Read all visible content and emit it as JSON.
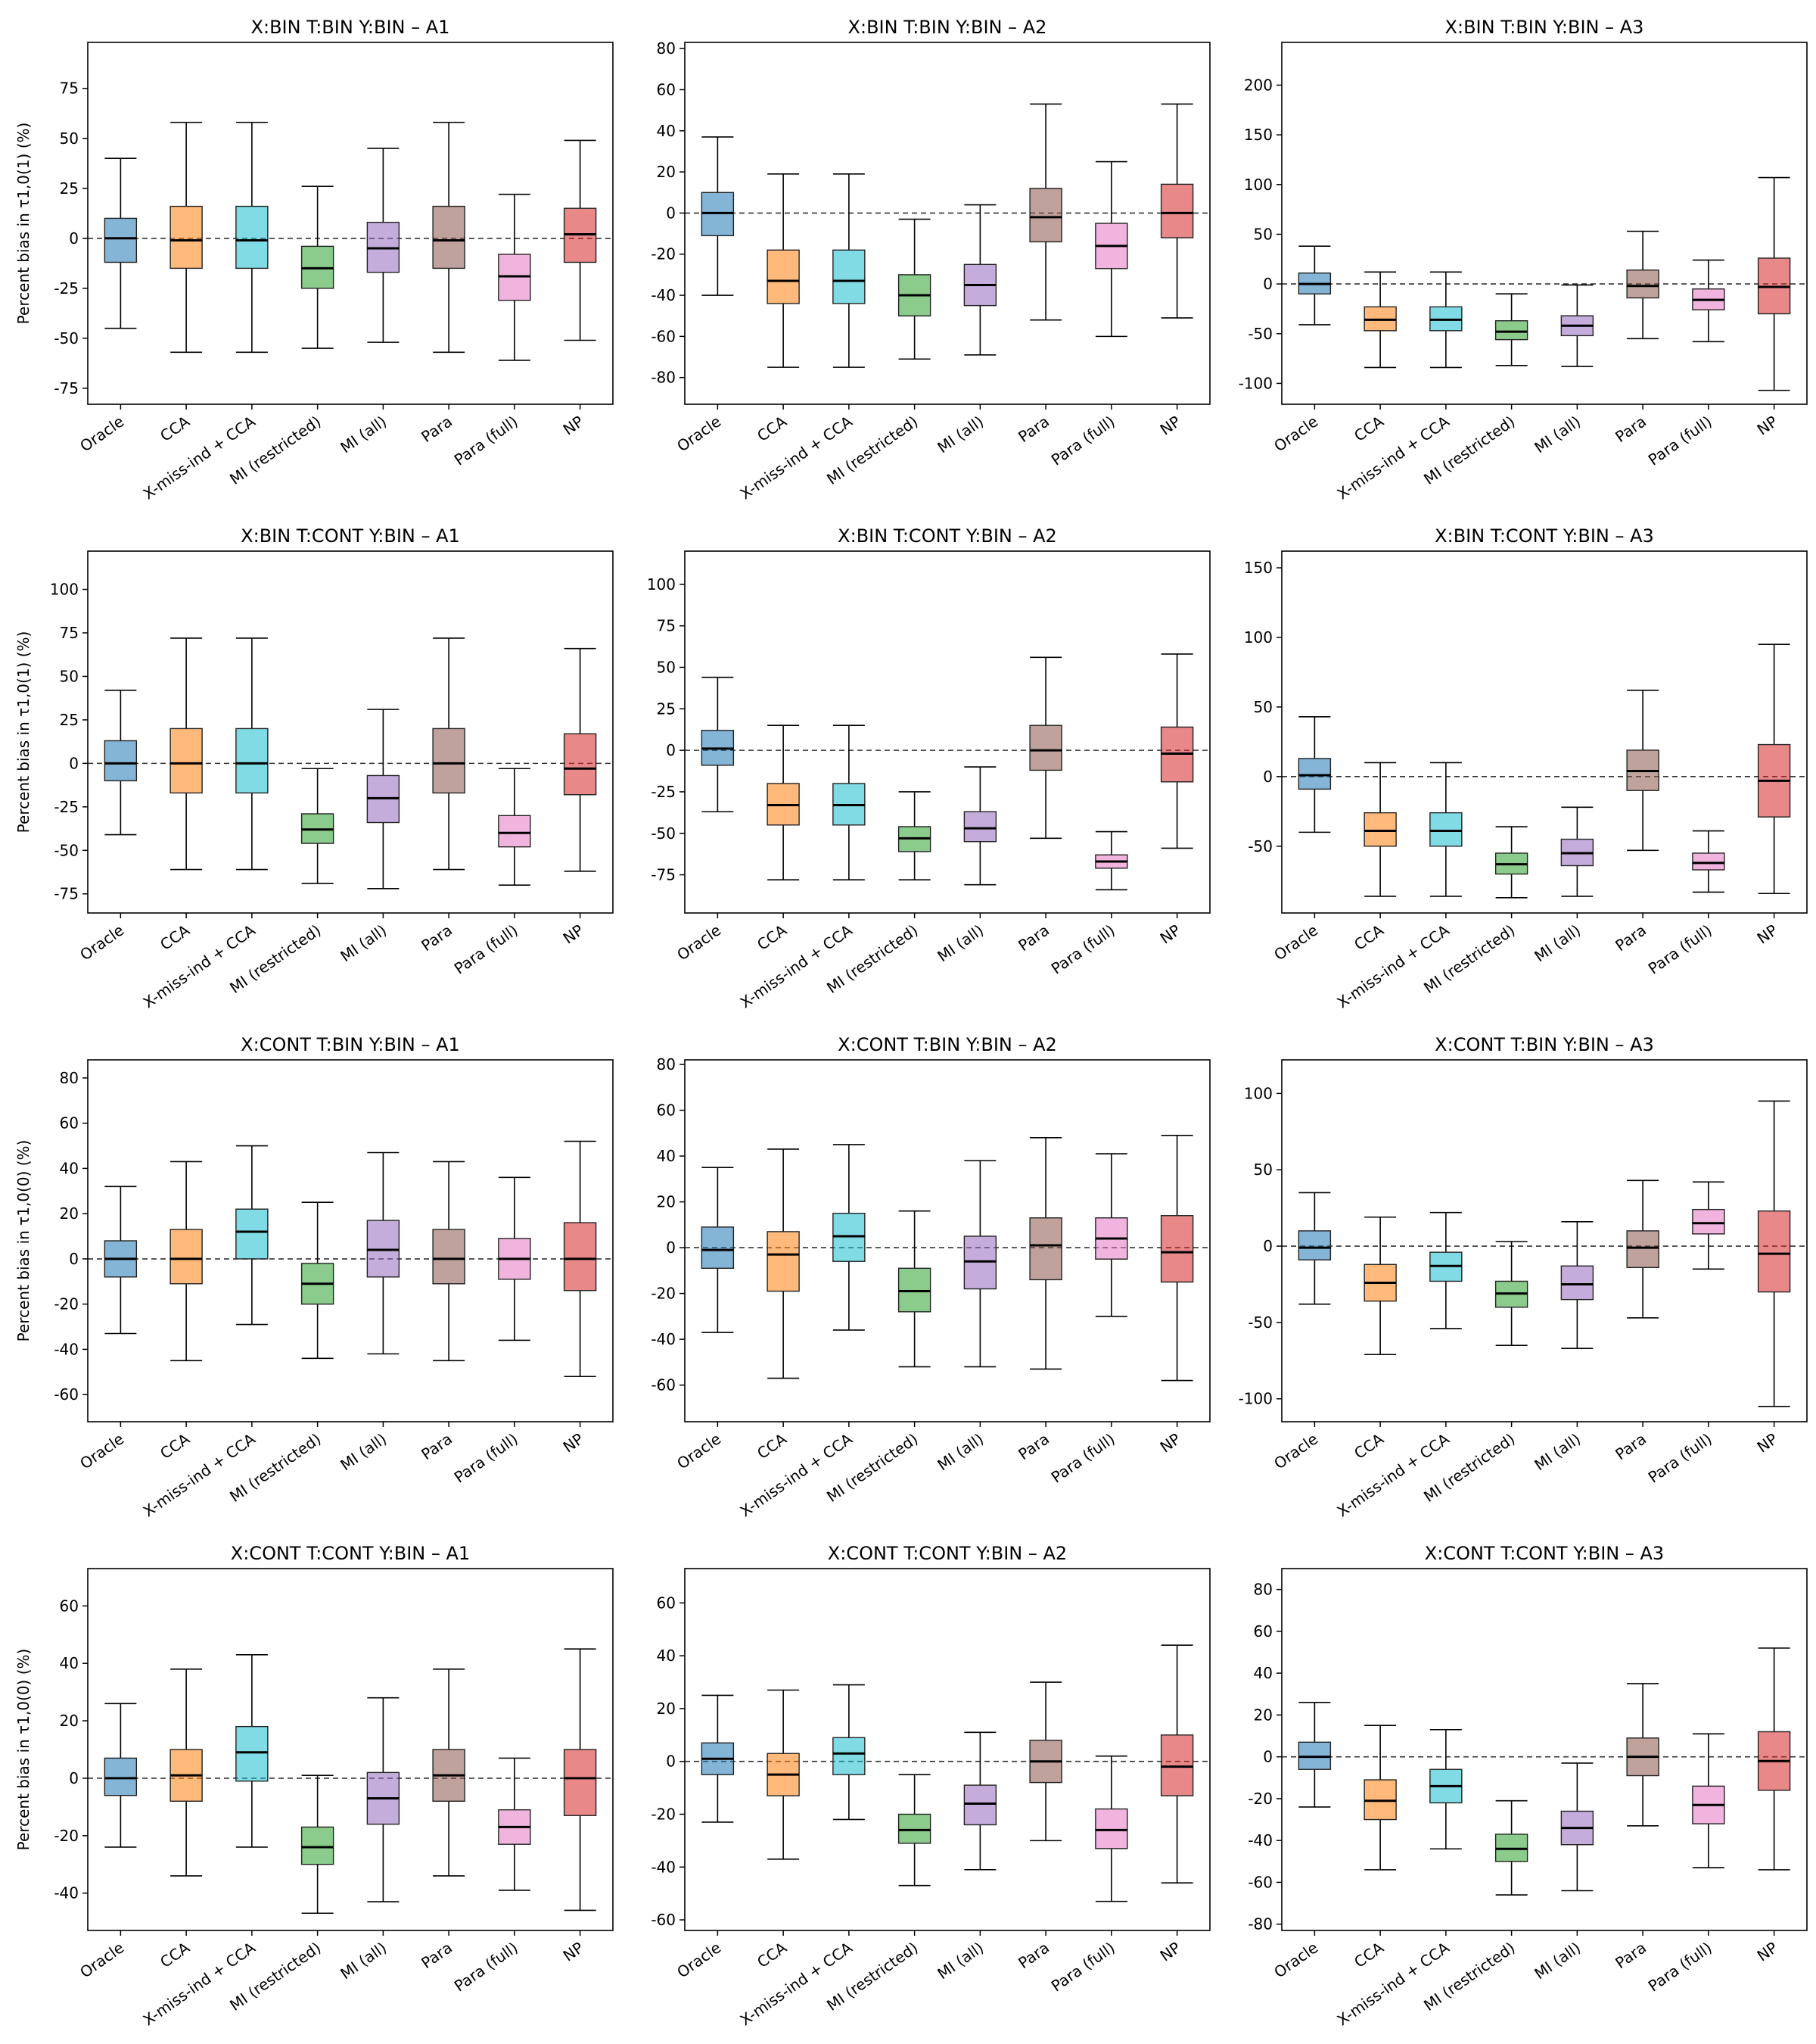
{
  "colors": [
    "#1f77b4",
    "#ff7f0e",
    "#17becf",
    "#2ca02c",
    "#9467bd",
    "#8c564b",
    "#e377c2",
    "#d62728"
  ],
  "chart_data": [
    {
      "type": "box",
      "title": "X:BIN T:BIN Y:BIN – A1",
      "ylabel": "Percent bias in τ1,0(1) (%)",
      "ylim": [
        -83,
        98
      ],
      "yticks": [
        "-75",
        "-50",
        "-25",
        "0",
        "25",
        "50",
        "75"
      ],
      "categories": [
        "Oracle",
        "CCA",
        "X-miss-ind + CCA",
        "MI (restricted)",
        "MI (all)",
        "Para",
        "Para (full)",
        "NP"
      ],
      "boxes": [
        {
          "min": -45,
          "q1": -12,
          "median": 0,
          "q3": 10,
          "max": 40
        },
        {
          "min": -57,
          "q1": -15,
          "median": -1,
          "q3": 16,
          "max": 58
        },
        {
          "min": -57,
          "q1": -15,
          "median": -1,
          "q3": 16,
          "max": 58
        },
        {
          "min": -55,
          "q1": -25,
          "median": -15,
          "q3": -4,
          "max": 26
        },
        {
          "min": -52,
          "q1": -17,
          "median": -5,
          "q3": 8,
          "max": 45
        },
        {
          "min": -57,
          "q1": -15,
          "median": -1,
          "q3": 16,
          "max": 58
        },
        {
          "min": -61,
          "q1": -31,
          "median": -19,
          "q3": -8,
          "max": 22
        },
        {
          "min": -51,
          "q1": -12,
          "median": 2,
          "q3": 15,
          "max": 49
        }
      ]
    },
    {
      "type": "box",
      "title": "X:BIN T:BIN Y:BIN – A2",
      "ylabel": "",
      "ylim": [
        -93,
        83
      ],
      "yticks": [
        "-80",
        "-60",
        "-40",
        "-20",
        "0",
        "20",
        "40",
        "60",
        "80"
      ],
      "categories": [
        "Oracle",
        "CCA",
        "X-miss-ind + CCA",
        "MI (restricted)",
        "MI (all)",
        "Para",
        "Para (full)",
        "NP"
      ],
      "boxes": [
        {
          "min": -40,
          "q1": -11,
          "median": 0,
          "q3": 10,
          "max": 37
        },
        {
          "min": -75,
          "q1": -44,
          "median": -33,
          "q3": -18,
          "max": 19
        },
        {
          "min": -75,
          "q1": -44,
          "median": -33,
          "q3": -18,
          "max": 19
        },
        {
          "min": -71,
          "q1": -50,
          "median": -40,
          "q3": -30,
          "max": -3
        },
        {
          "min": -69,
          "q1": -45,
          "median": -35,
          "q3": -25,
          "max": 4
        },
        {
          "min": -52,
          "q1": -14,
          "median": -2,
          "q3": 12,
          "max": 53
        },
        {
          "min": -60,
          "q1": -27,
          "median": -16,
          "q3": -5,
          "max": 25
        },
        {
          "min": -51,
          "q1": -12,
          "median": 0,
          "q3": 14,
          "max": 53
        }
      ]
    },
    {
      "type": "box",
      "title": "X:BIN T:BIN Y:BIN – A3",
      "ylabel": "",
      "ylim": [
        -121,
        243
      ],
      "yticks": [
        "-100",
        "-50",
        "0",
        "50",
        "100",
        "150",
        "200"
      ],
      "categories": [
        "Oracle",
        "CCA",
        "X-miss-ind + CCA",
        "MI (restricted)",
        "MI (all)",
        "Para",
        "Para (full)",
        "NP"
      ],
      "boxes": [
        {
          "min": -41,
          "q1": -10,
          "median": 0,
          "q3": 11,
          "max": 38
        },
        {
          "min": -84,
          "q1": -47,
          "median": -36,
          "q3": -23,
          "max": 12
        },
        {
          "min": -84,
          "q1": -47,
          "median": -36,
          "q3": -23,
          "max": 12
        },
        {
          "min": -82,
          "q1": -56,
          "median": -48,
          "q3": -37,
          "max": -10
        },
        {
          "min": -83,
          "q1": -52,
          "median": -42,
          "q3": -32,
          "max": -1
        },
        {
          "min": -55,
          "q1": -14,
          "median": -2,
          "q3": 14,
          "max": 53
        },
        {
          "min": -58,
          "q1": -26,
          "median": -16,
          "q3": -5,
          "max": 24
        },
        {
          "min": -107,
          "q1": -30,
          "median": -3,
          "q3": 26,
          "max": 107
        }
      ]
    },
    {
      "type": "box",
      "title": "X:BIN T:CONT Y:BIN – A1",
      "ylabel": "Percent bias in τ1,0(1) (%)",
      "ylim": [
        -86,
        122
      ],
      "yticks": [
        "-75",
        "-50",
        "-25",
        "0",
        "25",
        "50",
        "75",
        "100"
      ],
      "categories": [
        "Oracle",
        "CCA",
        "X-miss-ind + CCA",
        "MI (restricted)",
        "MI (all)",
        "Para",
        "Para (full)",
        "NP"
      ],
      "boxes": [
        {
          "min": -41,
          "q1": -10,
          "median": 0,
          "q3": 13,
          "max": 42
        },
        {
          "min": -61,
          "q1": -17,
          "median": 0,
          "q3": 20,
          "max": 72
        },
        {
          "min": -61,
          "q1": -17,
          "median": 0,
          "q3": 20,
          "max": 72
        },
        {
          "min": -69,
          "q1": -46,
          "median": -38,
          "q3": -29,
          "max": -3
        },
        {
          "min": -72,
          "q1": -34,
          "median": -20,
          "q3": -7,
          "max": 31
        },
        {
          "min": -61,
          "q1": -17,
          "median": 0,
          "q3": 20,
          "max": 72
        },
        {
          "min": -70,
          "q1": -48,
          "median": -40,
          "q3": -30,
          "max": -3
        },
        {
          "min": -62,
          "q1": -18,
          "median": -3,
          "q3": 17,
          "max": 66
        }
      ]
    },
    {
      "type": "box",
      "title": "X:BIN T:CONT Y:BIN – A2",
      "ylabel": "",
      "ylim": [
        -98,
        120
      ],
      "yticks": [
        "-75",
        "-50",
        "-25",
        "0",
        "25",
        "50",
        "75",
        "100"
      ],
      "categories": [
        "Oracle",
        "CCA",
        "X-miss-ind + CCA",
        "MI (restricted)",
        "MI (all)",
        "Para",
        "Para (full)",
        "NP"
      ],
      "boxes": [
        {
          "min": -37,
          "q1": -9,
          "median": 1,
          "q3": 12,
          "max": 44
        },
        {
          "min": -78,
          "q1": -45,
          "median": -33,
          "q3": -20,
          "max": 15
        },
        {
          "min": -78,
          "q1": -45,
          "median": -33,
          "q3": -20,
          "max": 15
        },
        {
          "min": -78,
          "q1": -61,
          "median": -53,
          "q3": -46,
          "max": -25
        },
        {
          "min": -81,
          "q1": -55,
          "median": -47,
          "q3": -37,
          "max": -10
        },
        {
          "min": -53,
          "q1": -12,
          "median": 0,
          "q3": 15,
          "max": 56
        },
        {
          "min": -84,
          "q1": -71,
          "median": -67,
          "q3": -63,
          "max": -49
        },
        {
          "min": -59,
          "q1": -19,
          "median": -2,
          "q3": 14,
          "max": 58
        }
      ]
    },
    {
      "type": "box",
      "title": "X:BIN T:CONT Y:BIN – A3",
      "ylabel": "",
      "ylim": [
        -98,
        162
      ],
      "yticks": [
        "-50",
        "0",
        "50",
        "100",
        "150"
      ],
      "categories": [
        "Oracle",
        "CCA",
        "X-miss-ind + CCA",
        "MI (restricted)",
        "MI (all)",
        "Para",
        "Para (full)",
        "NP"
      ],
      "boxes": [
        {
          "min": -40,
          "q1": -9,
          "median": 1,
          "q3": 13,
          "max": 43
        },
        {
          "min": -86,
          "q1": -50,
          "median": -39,
          "q3": -26,
          "max": 10
        },
        {
          "min": -86,
          "q1": -50,
          "median": -39,
          "q3": -26,
          "max": 10
        },
        {
          "min": -87,
          "q1": -70,
          "median": -63,
          "q3": -55,
          "max": -36
        },
        {
          "min": -86,
          "q1": -64,
          "median": -55,
          "q3": -45,
          "max": -22
        },
        {
          "min": -53,
          "q1": -10,
          "median": 4,
          "q3": 19,
          "max": 62
        },
        {
          "min": -83,
          "q1": -67,
          "median": -62,
          "q3": -55,
          "max": -39
        },
        {
          "min": -84,
          "q1": -29,
          "median": -3,
          "q3": 23,
          "max": 95
        }
      ]
    },
    {
      "type": "box",
      "title": "X:CONT T:BIN Y:BIN – A1",
      "ylabel": "Percent bias in τ1,0(0) (%)",
      "ylim": [
        -72,
        88
      ],
      "yticks": [
        "-60",
        "-40",
        "-20",
        "0",
        "20",
        "40",
        "60",
        "80"
      ],
      "categories": [
        "Oracle",
        "CCA",
        "X-miss-ind + CCA",
        "MI (restricted)",
        "MI (all)",
        "Para",
        "Para (full)",
        "NP"
      ],
      "boxes": [
        {
          "min": -33,
          "q1": -8,
          "median": 0,
          "q3": 8,
          "max": 32
        },
        {
          "min": -45,
          "q1": -11,
          "median": 0,
          "q3": 13,
          "max": 43
        },
        {
          "min": -29,
          "q1": 0,
          "median": 12,
          "q3": 22,
          "max": 50
        },
        {
          "min": -44,
          "q1": -20,
          "median": -11,
          "q3": -2,
          "max": 25
        },
        {
          "min": -42,
          "q1": -8,
          "median": 4,
          "q3": 17,
          "max": 47
        },
        {
          "min": -45,
          "q1": -11,
          "median": 0,
          "q3": 13,
          "max": 43
        },
        {
          "min": -36,
          "q1": -9,
          "median": 0,
          "q3": 9,
          "max": 36
        },
        {
          "min": -52,
          "q1": -14,
          "median": 0,
          "q3": 16,
          "max": 52
        }
      ]
    },
    {
      "type": "box",
      "title": "X:CONT T:BIN Y:BIN – A2",
      "ylabel": "",
      "ylim": [
        -76,
        82
      ],
      "yticks": [
        "-60",
        "-40",
        "-20",
        "0",
        "20",
        "40",
        "60",
        "80"
      ],
      "categories": [
        "Oracle",
        "CCA",
        "X-miss-ind + CCA",
        "MI (restricted)",
        "MI (all)",
        "Para",
        "Para (full)",
        "NP"
      ],
      "boxes": [
        {
          "min": -37,
          "q1": -9,
          "median": -1,
          "q3": 9,
          "max": 35
        },
        {
          "min": -57,
          "q1": -19,
          "median": -3,
          "q3": 7,
          "max": 43
        },
        {
          "min": -36,
          "q1": -6,
          "median": 5,
          "q3": 15,
          "max": 45
        },
        {
          "min": -52,
          "q1": -28,
          "median": -19,
          "q3": -9,
          "max": 16
        },
        {
          "min": -52,
          "q1": -18,
          "median": -6,
          "q3": 5,
          "max": 38
        },
        {
          "min": -53,
          "q1": -14,
          "median": 1,
          "q3": 13,
          "max": 48
        },
        {
          "min": -30,
          "q1": -5,
          "median": 4,
          "q3": 13,
          "max": 41
        },
        {
          "min": -58,
          "q1": -15,
          "median": -2,
          "q3": 14,
          "max": 49
        }
      ]
    },
    {
      "type": "box",
      "title": "X:CONT T:BIN Y:BIN – A3",
      "ylabel": "",
      "ylim": [
        -115,
        122
      ],
      "yticks": [
        "-100",
        "-50",
        "0",
        "50",
        "100"
      ],
      "categories": [
        "Oracle",
        "CCA",
        "X-miss-ind + CCA",
        "MI (restricted)",
        "MI (all)",
        "Para",
        "Para (full)",
        "NP"
      ],
      "boxes": [
        {
          "min": -38,
          "q1": -9,
          "median": -1,
          "q3": 10,
          "max": 35
        },
        {
          "min": -71,
          "q1": -36,
          "median": -24,
          "q3": -12,
          "max": 19
        },
        {
          "min": -54,
          "q1": -23,
          "median": -13,
          "q3": -4,
          "max": 22
        },
        {
          "min": -65,
          "q1": -40,
          "median": -31,
          "q3": -23,
          "max": 3
        },
        {
          "min": -67,
          "q1": -35,
          "median": -25,
          "q3": -13,
          "max": 16
        },
        {
          "min": -47,
          "q1": -14,
          "median": -1,
          "q3": 10,
          "max": 43
        },
        {
          "min": -15,
          "q1": 8,
          "median": 15,
          "q3": 24,
          "max": 42
        },
        {
          "min": -105,
          "q1": -30,
          "median": -5,
          "q3": 23,
          "max": 95
        }
      ]
    },
    {
      "type": "box",
      "title": "X:CONT T:CONT Y:BIN – A1",
      "ylabel": "Percent bias in τ1,0(0) (%)",
      "ylim": [
        -53,
        73
      ],
      "yticks": [
        "-40",
        "-20",
        "0",
        "20",
        "40",
        "60"
      ],
      "categories": [
        "Oracle",
        "CCA",
        "X-miss-ind + CCA",
        "MI (restricted)",
        "MI (all)",
        "Para",
        "Para (full)",
        "NP"
      ],
      "boxes": [
        {
          "min": -24,
          "q1": -6,
          "median": 0,
          "q3": 7,
          "max": 26
        },
        {
          "min": -34,
          "q1": -8,
          "median": 1,
          "q3": 10,
          "max": 38
        },
        {
          "min": -24,
          "q1": -1,
          "median": 9,
          "q3": 18,
          "max": 43
        },
        {
          "min": -47,
          "q1": -30,
          "median": -24,
          "q3": -17,
          "max": 1
        },
        {
          "min": -43,
          "q1": -16,
          "median": -7,
          "q3": 2,
          "max": 28
        },
        {
          "min": -34,
          "q1": -8,
          "median": 1,
          "q3": 10,
          "max": 38
        },
        {
          "min": -39,
          "q1": -23,
          "median": -17,
          "q3": -11,
          "max": 7
        },
        {
          "min": -46,
          "q1": -13,
          "median": 0,
          "q3": 10,
          "max": 45
        }
      ]
    },
    {
      "type": "box",
      "title": "X:CONT T:CONT Y:BIN – A2",
      "ylabel": "",
      "ylim": [
        -64,
        73
      ],
      "yticks": [
        "-60",
        "-40",
        "-20",
        "0",
        "20",
        "40",
        "60"
      ],
      "categories": [
        "Oracle",
        "CCA",
        "X-miss-ind + CCA",
        "MI (restricted)",
        "MI (all)",
        "Para",
        "Para (full)",
        "NP"
      ],
      "boxes": [
        {
          "min": -23,
          "q1": -5,
          "median": 1,
          "q3": 7,
          "max": 25
        },
        {
          "min": -37,
          "q1": -13,
          "median": -5,
          "q3": 3,
          "max": 27
        },
        {
          "min": -22,
          "q1": -5,
          "median": 3,
          "q3": 9,
          "max": 29
        },
        {
          "min": -47,
          "q1": -31,
          "median": -26,
          "q3": -20,
          "max": -5
        },
        {
          "min": -41,
          "q1": -24,
          "median": -16,
          "q3": -9,
          "max": 11
        },
        {
          "min": -30,
          "q1": -8,
          "median": 0,
          "q3": 8,
          "max": 30
        },
        {
          "min": -53,
          "q1": -33,
          "median": -26,
          "q3": -18,
          "max": 2
        },
        {
          "min": -46,
          "q1": -13,
          "median": -2,
          "q3": 10,
          "max": 44
        }
      ]
    },
    {
      "type": "box",
      "title": "X:CONT T:CONT Y:BIN – A3",
      "ylabel": "",
      "ylim": [
        -83,
        90
      ],
      "yticks": [
        "-80",
        "-60",
        "-40",
        "-20",
        "0",
        "20",
        "40",
        "60",
        "80"
      ],
      "categories": [
        "Oracle",
        "CCA",
        "X-miss-ind + CCA",
        "MI (restricted)",
        "MI (all)",
        "Para",
        "Para (full)",
        "NP"
      ],
      "boxes": [
        {
          "min": -24,
          "q1": -6,
          "median": 0,
          "q3": 7,
          "max": 26
        },
        {
          "min": -54,
          "q1": -30,
          "median": -21,
          "q3": -11,
          "max": 15
        },
        {
          "min": -44,
          "q1": -22,
          "median": -14,
          "q3": -6,
          "max": 13
        },
        {
          "min": -66,
          "q1": -50,
          "median": -44,
          "q3": -37,
          "max": -21
        },
        {
          "min": -64,
          "q1": -42,
          "median": -34,
          "q3": -26,
          "max": -3
        },
        {
          "min": -33,
          "q1": -9,
          "median": 0,
          "q3": 9,
          "max": 35
        },
        {
          "min": -53,
          "q1": -32,
          "median": -23,
          "q3": -14,
          "max": 11
        },
        {
          "min": -54,
          "q1": -16,
          "median": -2,
          "q3": 12,
          "max": 52
        }
      ]
    }
  ]
}
